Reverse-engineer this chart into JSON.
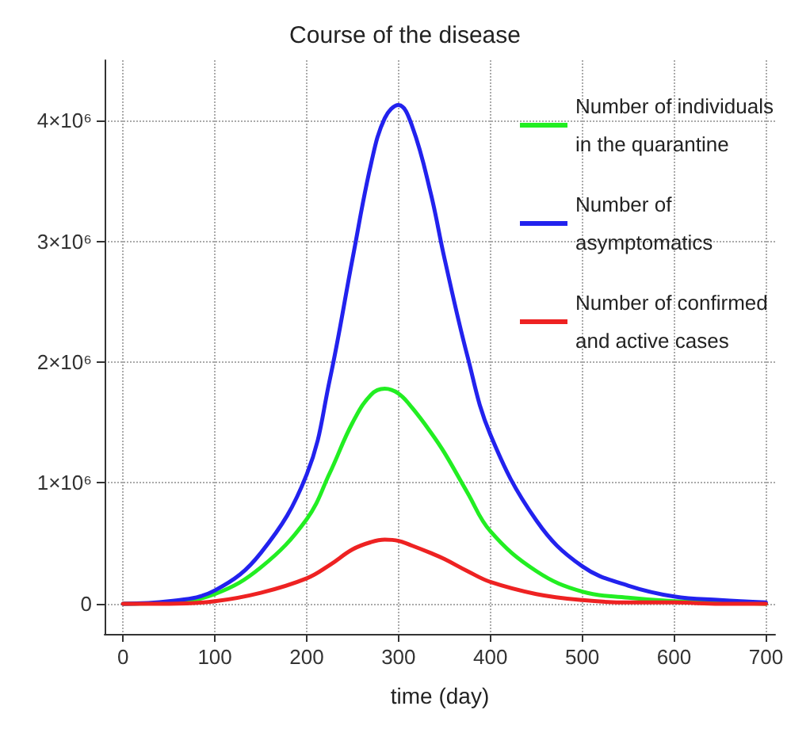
{
  "chart_data": {
    "type": "line",
    "title": "Course of the disease",
    "xlabel": "time (day)",
    "x": [
      0,
      50,
      100,
      150,
      200,
      225,
      250,
      270,
      285,
      300,
      315,
      335,
      350,
      375,
      400,
      450,
      500,
      550,
      600,
      650,
      700
    ],
    "series": [
      {
        "name": "Number of individuals in the quarantine",
        "color": "#22ee22",
        "values": [
          0,
          10000,
          80000,
          300000,
          700000,
          1080000,
          1500000,
          1730000,
          1780000,
          1740000,
          1620000,
          1420000,
          1250000,
          920000,
          600000,
          270000,
          100000,
          50000,
          20000,
          10000,
          0
        ]
      },
      {
        "name": "Number of asymptomatics",
        "color": "#2222ee",
        "values": [
          0,
          20000,
          110000,
          420000,
          1070000,
          1850000,
          2860000,
          3640000,
          4020000,
          4130000,
          3950000,
          3400000,
          2860000,
          2050000,
          1400000,
          690000,
          310000,
          150000,
          60000,
          30000,
          10000
        ]
      },
      {
        "name": "Number of confirmed and active cases",
        "color": "#ee2222",
        "values": [
          0,
          0,
          20000,
          90000,
          210000,
          320000,
          450000,
          510000,
          530000,
          520000,
          480000,
          420000,
          370000,
          270000,
          180000,
          80000,
          30000,
          10000,
          10000,
          0,
          0
        ]
      }
    ],
    "xlim": [
      -20,
      710
    ],
    "xticks": [
      0,
      100,
      200,
      300,
      400,
      500,
      600,
      700
    ],
    "ylim": [
      -250000,
      4500000
    ],
    "yticks": [
      0,
      {
        "value": 1000000,
        "label": "1×10⁶"
      },
      {
        "value": 2000000,
        "label": "2×10⁶"
      },
      {
        "value": 3000000,
        "label": "3×10⁶"
      },
      {
        "value": 4000000,
        "label": "4×10⁶"
      }
    ],
    "grid": true,
    "legend": "top right",
    "marker": "none",
    "line_style": "solid"
  }
}
